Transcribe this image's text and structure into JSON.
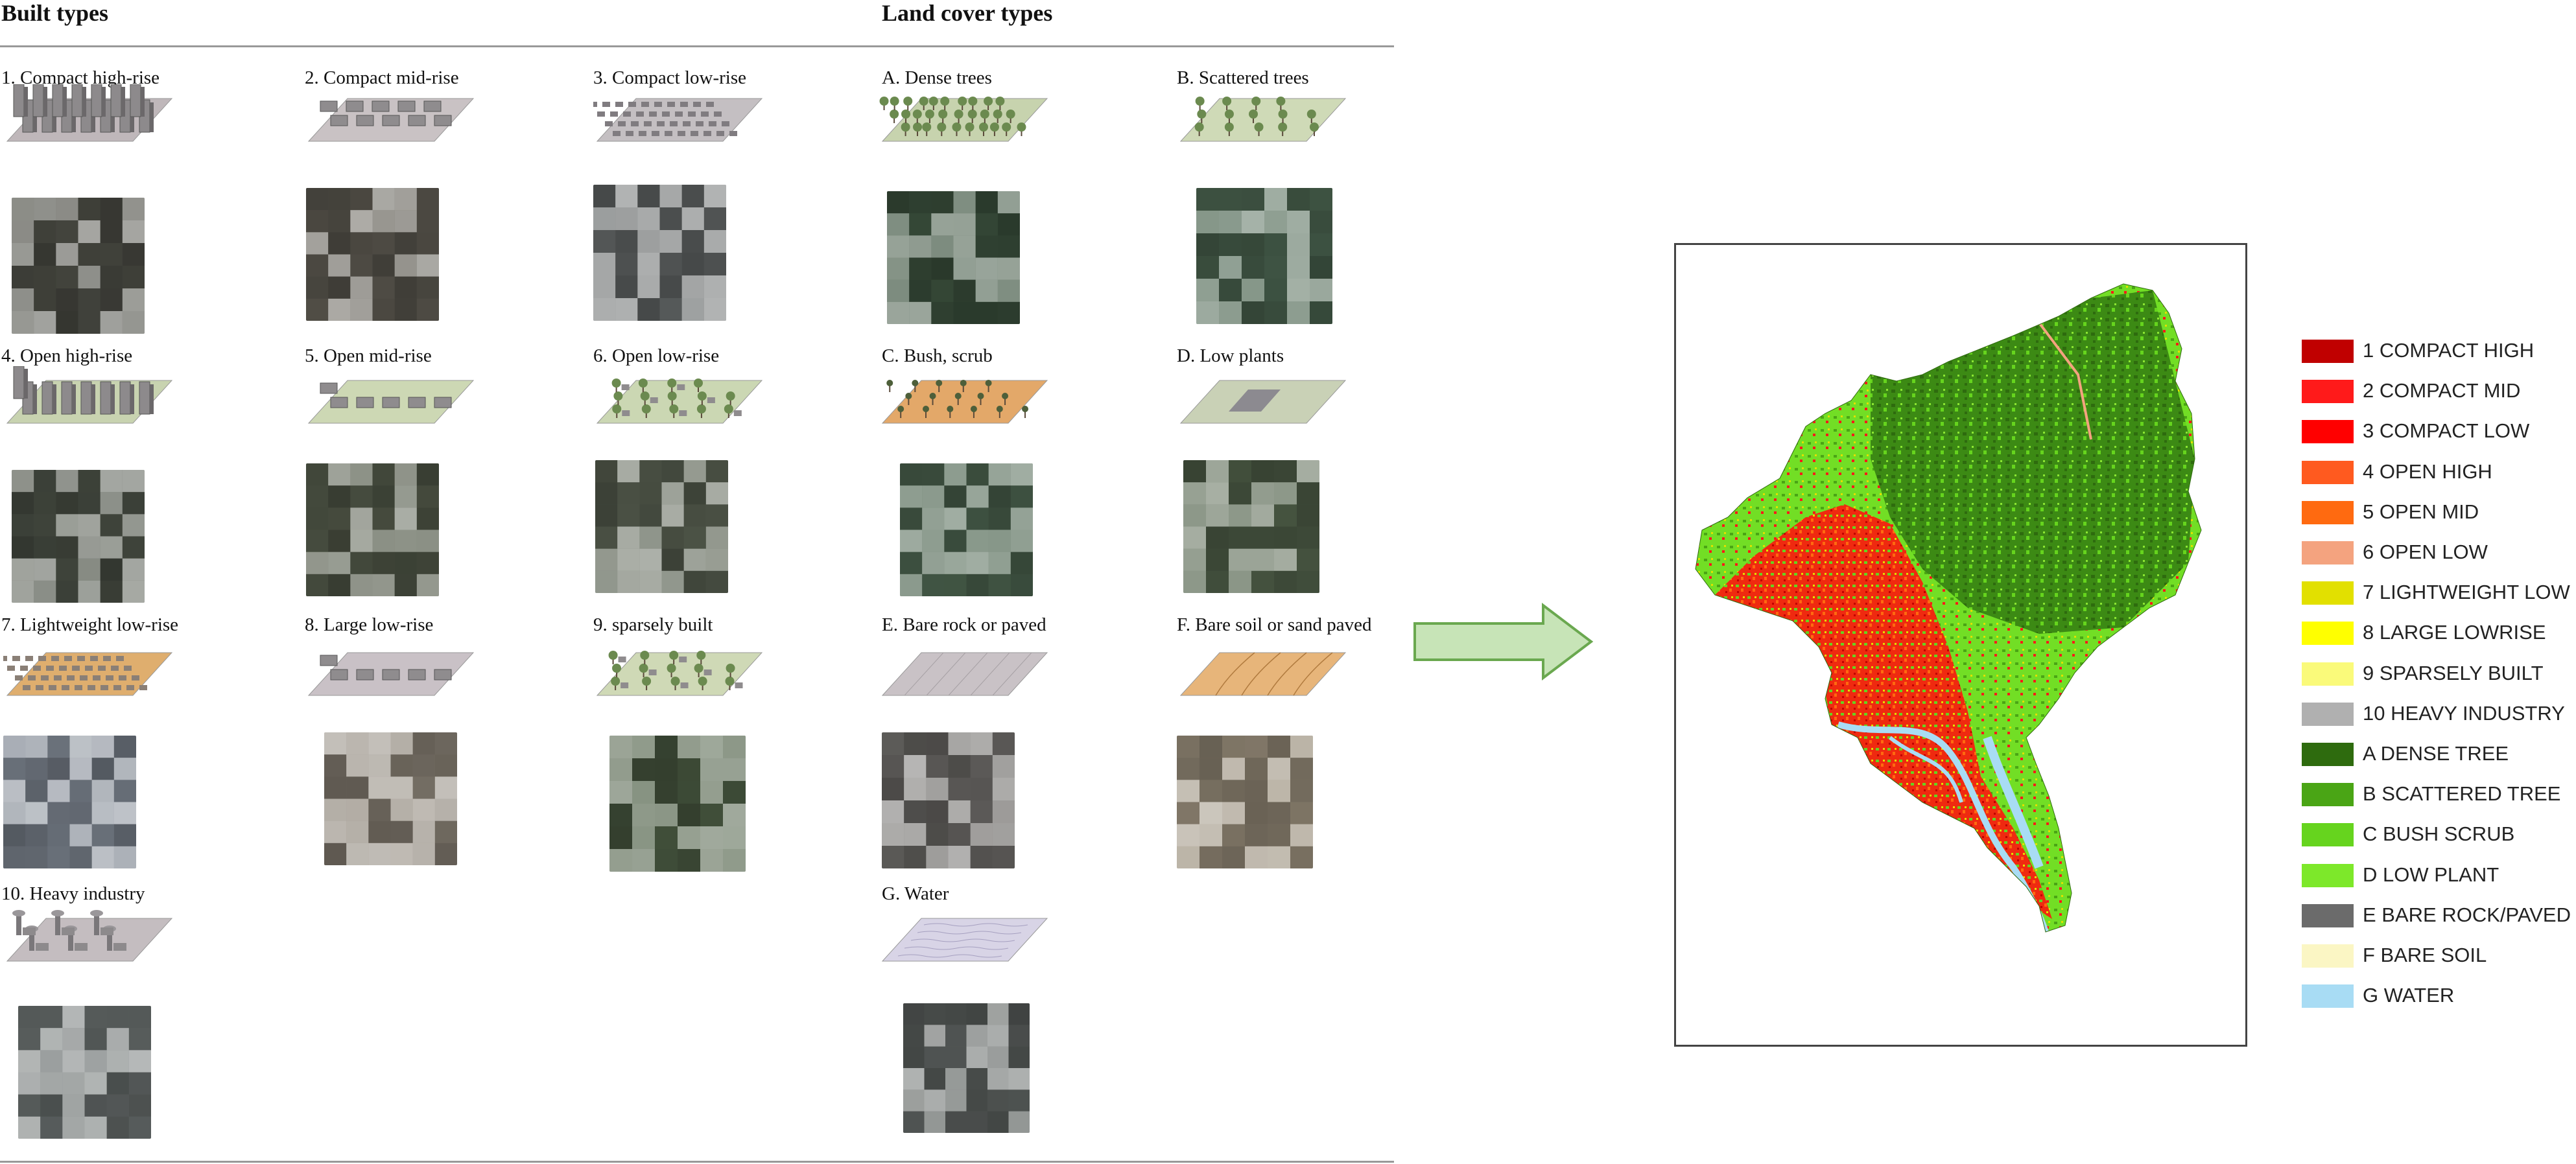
{
  "headers": {
    "built_types": "Built types",
    "land_cover_types": "Land cover types"
  },
  "built_types": [
    {
      "label": "1. Compact high-rise",
      "icon": "compact-high-rise-icon",
      "photo_color": "#4f5048"
    },
    {
      "label": "2. Compact mid-rise",
      "icon": "compact-mid-rise-icon",
      "photo_color": "#5e5b52"
    },
    {
      "label": "3. Compact low-rise",
      "icon": "compact-low-rise-icon",
      "photo_color": "#666a6a"
    },
    {
      "label": "4. Open high-rise",
      "icon": "open-high-rise-icon",
      "photo_color": "#4c5247"
    },
    {
      "label": "5. Open mid-rise",
      "icon": "open-mid-rise-icon",
      "photo_color": "#535a4a"
    },
    {
      "label": "6. Open low-rise",
      "icon": "open-low-rise-icon",
      "photo_color": "#596152"
    },
    {
      "label": "7. Lightweight low-rise",
      "icon": "lightweight-low-rise-icon",
      "photo_color": "#7d8590"
    },
    {
      "label": "8. Large low-rise",
      "icon": "large-low-rise-icon",
      "photo_color": "#8a8276"
    },
    {
      "label": "9. sparsely built",
      "icon": "sparsely-built-icon",
      "photo_color": "#4d5e45"
    },
    {
      "label": "10. Heavy industry",
      "icon": "heavy-industry-icon",
      "photo_color": "#6b7170"
    }
  ],
  "land_cover_types": [
    {
      "label": "A. Dense trees",
      "icon": "dense-trees-icon",
      "photo_color": "#3e5440"
    },
    {
      "label": "B. Scattered trees",
      "icon": "scattered-trees-icon",
      "photo_color": "#4b6450"
    },
    {
      "label": "C. Bush, scrub",
      "icon": "bush-scrub-icon",
      "photo_color": "#4d6550"
    },
    {
      "label": "D. Low plants",
      "icon": "low-plants-icon",
      "photo_color": "#53634c"
    },
    {
      "label": "E. Bare rock or paved",
      "icon": "bare-rock-paved-icon",
      "photo_color": "#6d6b68"
    },
    {
      "label": "F. Bare soil or sand paved",
      "icon": "bare-soil-sand-icon",
      "photo_color": "#9a8f7c"
    },
    {
      "label": "G. Water",
      "icon": "water-icon",
      "photo_color": "#5f6462"
    }
  ],
  "legend": [
    {
      "label": "1 COMPACT HIGH",
      "color": "#c00000"
    },
    {
      "label": "2 COMPACT MID",
      "color": "#ff1a1a"
    },
    {
      "label": "3 COMPACT LOW",
      "color": "#ff0000"
    },
    {
      "label": "4 OPEN HIGH",
      "color": "#ff5a1f"
    },
    {
      "label": "5 OPEN MID",
      "color": "#ff6a10"
    },
    {
      "label": "6 OPEN LOW",
      "color": "#f4a37f"
    },
    {
      "label": "7 LIGHTWEIGHT LOW",
      "color": "#e2e000"
    },
    {
      "label": "8 LARGE LOWRISE",
      "color": "#ffff00"
    },
    {
      "label": "9 SPARSELY BUILT",
      "color": "#fafa7a"
    },
    {
      "label": "10 HEAVY INDUSTRY",
      "color": "#b0b0b0"
    },
    {
      "label": "A DENSE TREE",
      "color": "#2e6b0e"
    },
    {
      "label": "B SCATTERED TREE",
      "color": "#4aa515"
    },
    {
      "label": "C BUSH SCRUB",
      "color": "#66d41e"
    },
    {
      "label": "D LOW PLANT",
      "color": "#7de82a"
    },
    {
      "label": "E BARE ROCK/PAVED",
      "color": "#6b6b6b"
    },
    {
      "label": "F BARE SOIL",
      "color": "#fbf6c4"
    },
    {
      "label": "G WATER",
      "color": "#a8dcf4"
    }
  ],
  "arrow": {
    "fill": "#c7e4b7",
    "stroke": "#6aa84f"
  }
}
